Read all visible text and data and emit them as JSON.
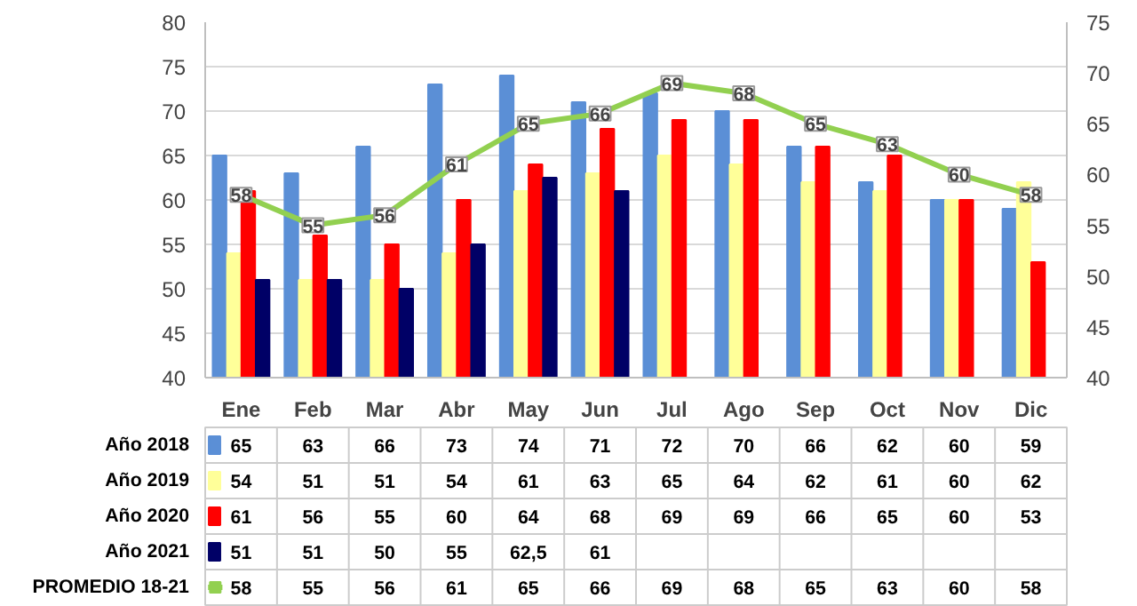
{
  "chart_data": {
    "type": "bar",
    "categories": [
      "Ene",
      "Feb",
      "Mar",
      "Abr",
      "May",
      "Jun",
      "Jul",
      "Ago",
      "Sep",
      "Oct",
      "Nov",
      "Dic"
    ],
    "series": [
      {
        "name": "Año 2018",
        "color": "#5b8fd6",
        "values": [
          65,
          63,
          66,
          73,
          74,
          71,
          72,
          70,
          66,
          62,
          60,
          59
        ],
        "value_labels": [
          "65",
          "63",
          "66",
          "73",
          "74",
          "71",
          "72",
          "70",
          "66",
          "62",
          "60",
          "59"
        ]
      },
      {
        "name": "Año 2019",
        "color": "#ffff99",
        "values": [
          54,
          51,
          51,
          54,
          61,
          63,
          65,
          64,
          62,
          61,
          60,
          62
        ],
        "value_labels": [
          "54",
          "51",
          "51",
          "54",
          "61",
          "63",
          "65",
          "64",
          "62",
          "61",
          "60",
          "62"
        ]
      },
      {
        "name": "Año 2020",
        "color": "#ff0000",
        "values": [
          61,
          56,
          55,
          60,
          64,
          68,
          69,
          69,
          66,
          65,
          60,
          53
        ],
        "value_labels": [
          "61",
          "56",
          "55",
          "60",
          "64",
          "68",
          "69",
          "69",
          "66",
          "65",
          "60",
          "53"
        ]
      },
      {
        "name": "Año 2021",
        "color": "#000066",
        "values": [
          51,
          51,
          50,
          55,
          62.5,
          61,
          null,
          null,
          null,
          null,
          null,
          null
        ],
        "value_labels": [
          "51",
          "51",
          "50",
          "55",
          "62,5",
          "61",
          null,
          null,
          null,
          null,
          null,
          null
        ]
      },
      {
        "name": "PROMEDIO 18-21",
        "type": "line",
        "axis": "y2",
        "color": "#92d050",
        "values": [
          58,
          55,
          56,
          61,
          65,
          66,
          69,
          68,
          65,
          63,
          60,
          58
        ],
        "value_labels": [
          "58",
          "55",
          "56",
          "61",
          "65",
          "66",
          "69",
          "68",
          "65",
          "63",
          "60",
          "58"
        ]
      }
    ],
    "ylim": [
      40,
      80
    ],
    "yticks": [
      40,
      45,
      50,
      55,
      60,
      65,
      70,
      75,
      80
    ],
    "y2lim": [
      40,
      75
    ],
    "y2ticks": [
      40,
      45,
      50,
      55,
      60,
      65,
      70,
      75
    ],
    "grid": "y",
    "legend": "bottom left",
    "marker": "square",
    "line_style": "solid"
  }
}
